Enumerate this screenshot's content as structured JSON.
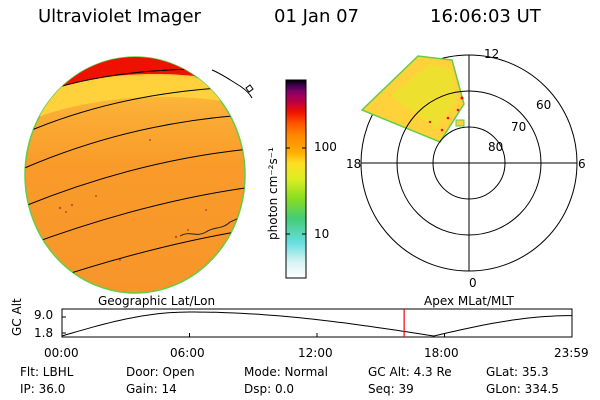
{
  "header": {
    "title": "Ultraviolet Imager",
    "date": "01 Jan 07",
    "time": "16:06:03 UT"
  },
  "colorbar": {
    "unit_label": "photon cm⁻²s⁻¹",
    "ticks": [
      "100",
      "10"
    ],
    "colors": [
      "#ffffff",
      "#d8f4f4",
      "#66dede",
      "#44cc77",
      "#88dd22",
      "#ddee22",
      "#ffdd22",
      "#ffaa00",
      "#ff8800",
      "#ff5500",
      "#ee1100",
      "#bb0044",
      "#880066",
      "#440055",
      "#000000"
    ]
  },
  "left_image": {
    "label": "Geographic Lat/Lon",
    "fill_color": "#f99b2a",
    "aurora_colors": [
      "#ee1100",
      "#ffaa00",
      "#ffd23c"
    ]
  },
  "polar_plot": {
    "label": "Apex MLat/MLT",
    "mlt_labels": [
      "12",
      "18",
      "6",
      "0"
    ],
    "lat_labels": [
      "60",
      "70",
      "80"
    ]
  },
  "timeline": {
    "axis_label": "GC Alt",
    "y_ticks": [
      "9.0",
      "1.8"
    ],
    "x_ticks": [
      "00:00",
      "06:00",
      "12:00",
      "18:00",
      "23:59"
    ],
    "marker_hour": 16.1,
    "marker_color": "#ff0000"
  },
  "status": {
    "flt": "Flt: LBHL",
    "door": "Door: Open",
    "mode": "Mode: Normal",
    "gc_alt": "GC Alt: 4.3 Re",
    "glat": "GLat: 35.3",
    "ip": "IP: 36.0",
    "gain": "Gain: 14",
    "dsp": "Dsp:    0.0",
    "seq": "Seq: 39",
    "glon": "GLon: 334.5"
  }
}
